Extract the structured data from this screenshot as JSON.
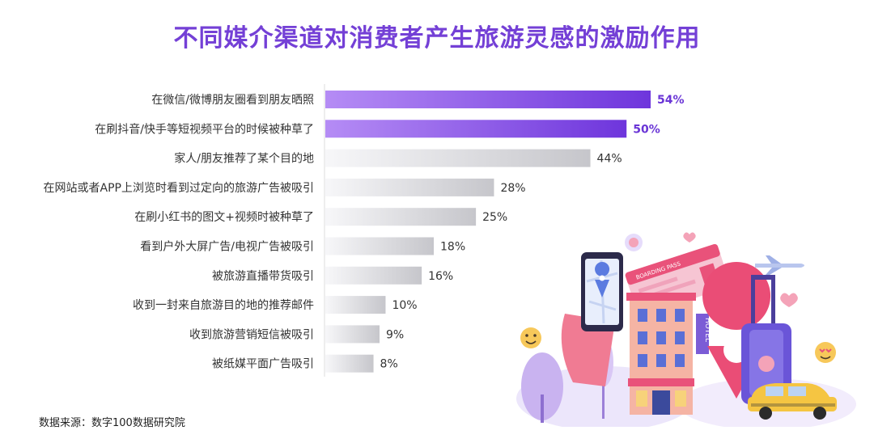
{
  "title": "不同媒介渠道对消费者产生旅游灵感的激励作用",
  "source": "数据来源：数字100数据研究院",
  "colors": {
    "title": "#7440d6",
    "bar_highlight_start": "#b58cf5",
    "bar_highlight_end": "#6e35dc",
    "bar_gray_start": "#f7f7f9",
    "bar_gray_end": "#c6c6cb",
    "label_highlight": "#6a35d6",
    "label_normal": "#333333"
  },
  "chart_data": {
    "type": "bar",
    "orientation": "horizontal",
    "title": "不同媒介渠道对消费者产生旅游灵感的激励作用",
    "xlabel": "",
    "ylabel": "",
    "unit": "%",
    "xlim": [
      0,
      54
    ],
    "grid": false,
    "highlight_count": 2,
    "categories": [
      "在微信/微博朋友圈看到朋友晒照",
      "在刷抖音/快手等短视频平台的时候被种草了",
      "家人/朋友推荐了某个目的地",
      "在网站或者APP上浏览时看到过定向的旅游广告被吸引",
      "在刷小红书的图文+视频时被种草了",
      "看到户外大屏广告/电视广告被吸引",
      "被旅游直播带货吸引",
      "收到一封来自旅游目的地的推荐邮件",
      "收到旅游营销短信被吸引",
      "被纸媒平面广告吸引"
    ],
    "values": [
      54,
      50,
      44,
      28,
      25,
      18,
      16,
      10,
      9,
      8
    ],
    "value_labels": [
      "54%",
      "50%",
      "44%",
      "28%",
      "25%",
      "18%",
      "16%",
      "10%",
      "9%",
      "8%"
    ]
  },
  "illustration": {
    "ticket_text": "BOARDING PASS",
    "hotel_sign": "HOTEL",
    "icons": [
      "smartphone-icon",
      "map-pin-icon",
      "hotel-building-icon",
      "suitcase-icon",
      "taxi-icon",
      "airplane-icon",
      "boarding-pass-icon",
      "emoji-icon",
      "heart-icon"
    ]
  }
}
